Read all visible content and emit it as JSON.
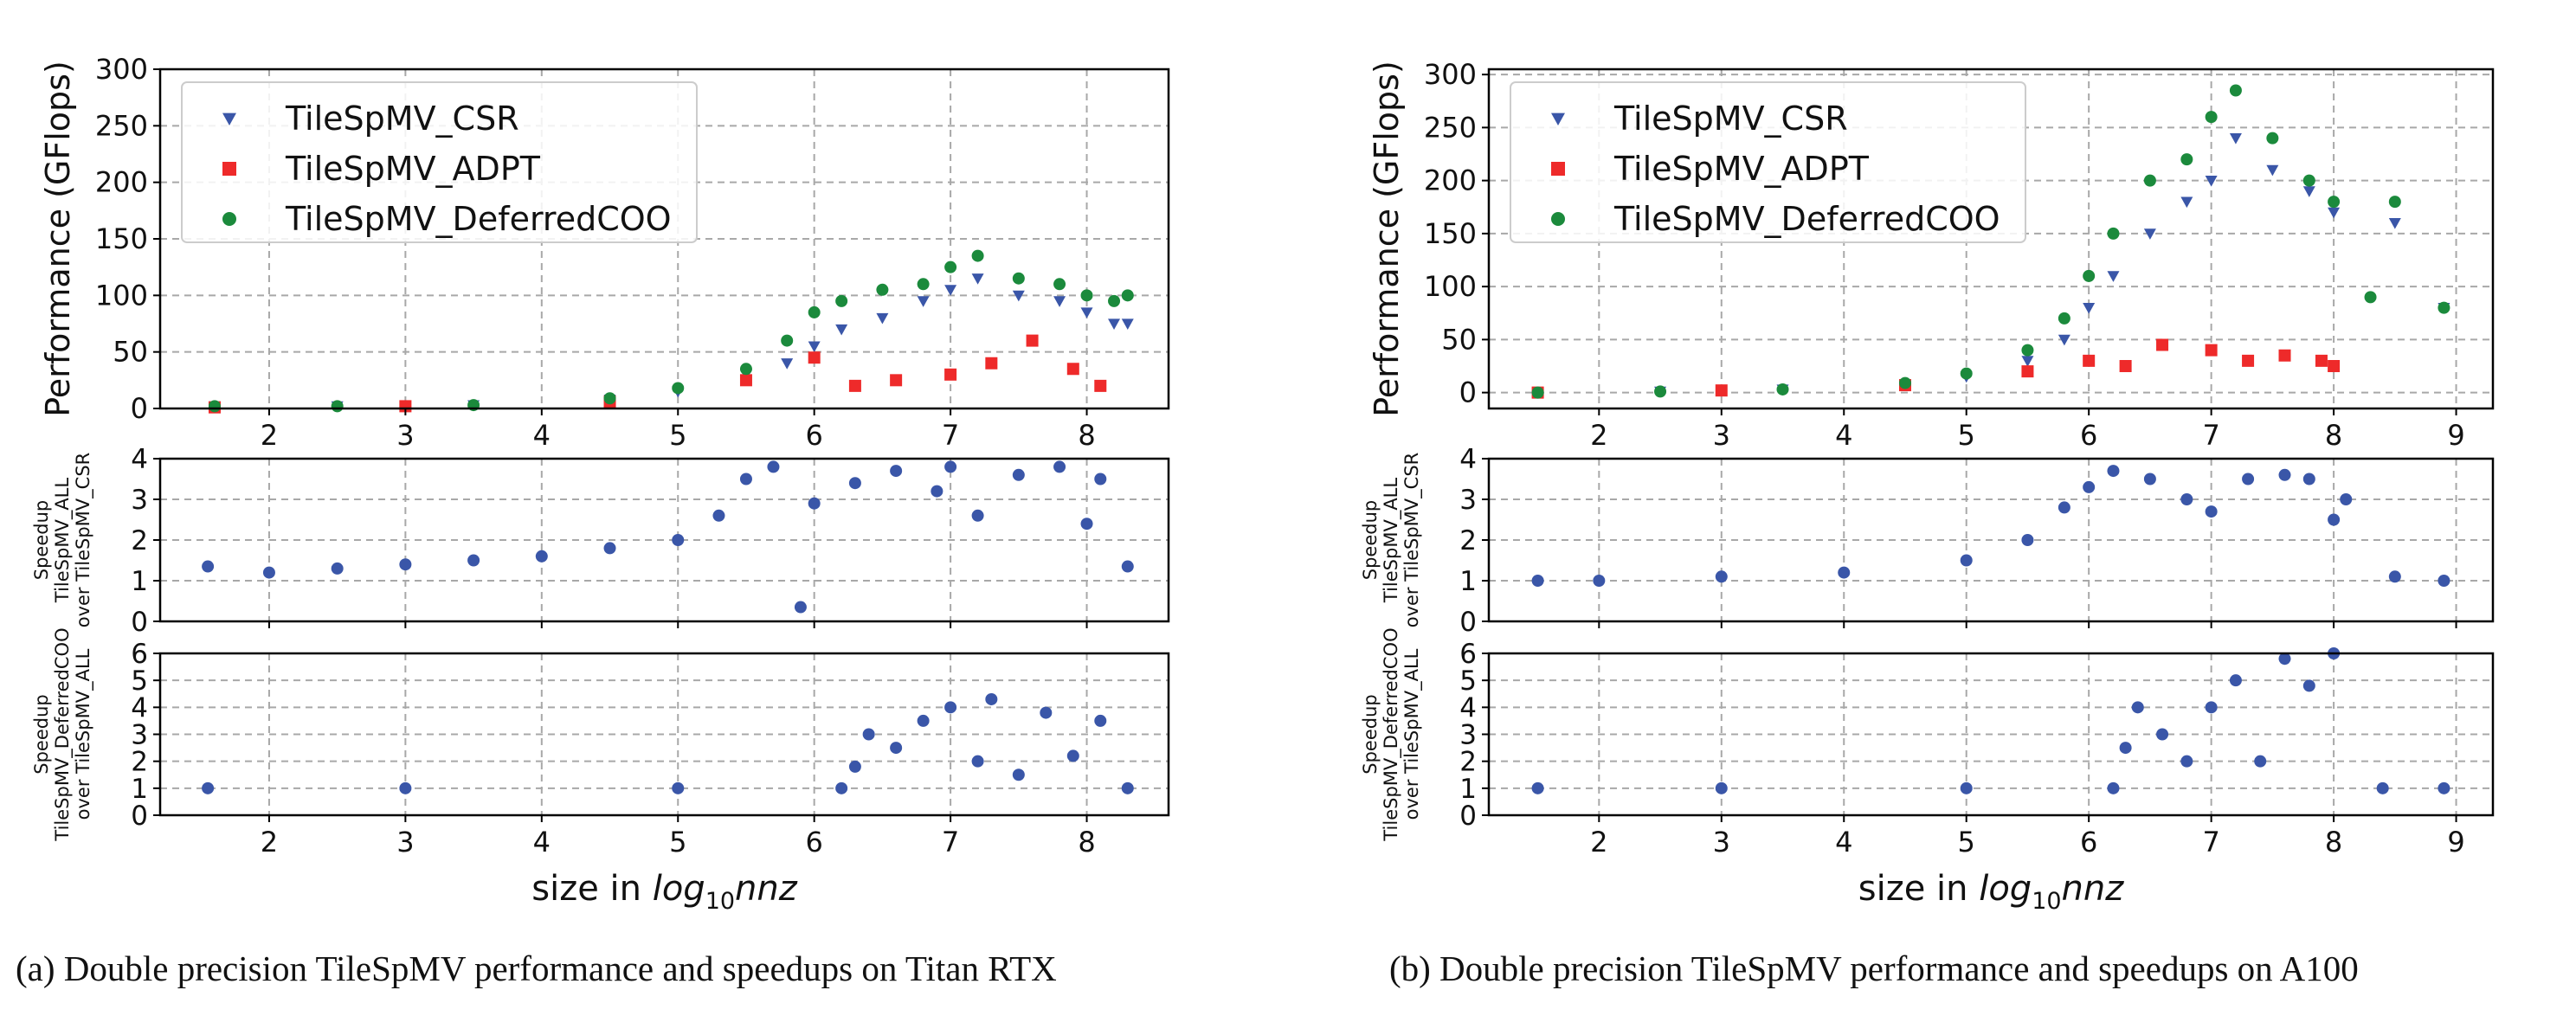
{
  "chart_data": [
    {
      "id": "a",
      "type": "scatter",
      "caption": "(a) Double precision TileSpMV performance and speedups on Titan RTX",
      "xlabel_prefix": "size in ",
      "xlabel_math": "log",
      "xlabel_sub": "10",
      "xlabel_var": "nnz",
      "xlim": [
        1.2,
        8.6
      ],
      "xticks": [
        2,
        3,
        4,
        5,
        6,
        7,
        8
      ],
      "panels": [
        {
          "id": "perf",
          "ylabel": [
            "Performance (GFlops)"
          ],
          "ylim": [
            0,
            300
          ],
          "yticks": [
            0,
            50,
            100,
            150,
            200,
            250,
            300
          ],
          "legend": {
            "placement": "top-left",
            "entries": [
              {
                "label": "TileSpMV_CSR",
                "marker": "triangle-down",
                "color": "#3a56a8"
              },
              {
                "label": "TileSpMV_ADPT",
                "marker": "square",
                "color": "#ee2a2a"
              },
              {
                "label": "TileSpMV_DeferredCOO",
                "marker": "circle",
                "color": "#1b8a3c"
              }
            ]
          },
          "series": [
            {
              "name": "TileSpMV_CSR",
              "color": "#3a56a8",
              "marker": "triangle-down",
              "x": [
                1.6,
                2.5,
                3.5,
                4.5,
                5.0,
                5.5,
                5.8,
                6.0,
                6.2,
                6.5,
                6.8,
                7.0,
                7.2,
                7.5,
                7.8,
                8.0,
                8.2,
                8.3
              ],
              "y": [
                2,
                2,
                3,
                8,
                15,
                30,
                40,
                55,
                70,
                80,
                95,
                105,
                115,
                100,
                95,
                85,
                75,
                75
              ]
            },
            {
              "name": "TileSpMV_ADPT",
              "color": "#ee2a2a",
              "marker": "square",
              "x": [
                1.6,
                3.0,
                4.5,
                5.5,
                6.0,
                6.3,
                6.6,
                7.0,
                7.3,
                7.6,
                7.9,
                8.1
              ],
              "y": [
                1,
                2,
                6,
                25,
                45,
                20,
                25,
                30,
                40,
                60,
                35,
                20
              ]
            },
            {
              "name": "TileSpMV_DeferredCOO",
              "color": "#1b8a3c",
              "marker": "circle",
              "x": [
                1.6,
                2.5,
                3.5,
                4.5,
                5.0,
                5.5,
                5.8,
                6.0,
                6.2,
                6.5,
                6.8,
                7.0,
                7.2,
                7.5,
                7.8,
                8.0,
                8.2,
                8.3
              ],
              "y": [
                2,
                2,
                3,
                9,
                18,
                35,
                60,
                85,
                95,
                105,
                110,
                125,
                135,
                115,
                110,
                100,
                95,
                100
              ]
            }
          ]
        },
        {
          "id": "speedup1",
          "ylabel": [
            "Speedup",
            "TileSpMV_ALL",
            "over TileSpMV_CSR"
          ],
          "ylim": [
            0,
            4
          ],
          "yticks": [
            0,
            1,
            2,
            3,
            4
          ],
          "series": [
            {
              "name": "",
              "color": "#3a56a8",
              "marker": "circle",
              "x": [
                1.55,
                2.0,
                2.5,
                3.0,
                3.5,
                4.0,
                4.5,
                5.0,
                5.3,
                5.5,
                5.7,
                5.9,
                6.0,
                6.3,
                6.6,
                6.9,
                7.0,
                7.2,
                7.5,
                7.8,
                8.0,
                8.1,
                8.3
              ],
              "y": [
                1.35,
                1.2,
                1.3,
                1.4,
                1.5,
                1.6,
                1.8,
                2.0,
                2.6,
                3.5,
                3.8,
                0.35,
                2.9,
                3.4,
                3.7,
                3.2,
                3.8,
                2.6,
                3.6,
                3.8,
                2.4,
                3.5,
                1.35
              ]
            }
          ]
        },
        {
          "id": "speedup2",
          "ylabel": [
            "Speedup",
            "TileSpMV_DeferredCOO",
            "over TileSpMV_ALL"
          ],
          "ylim": [
            0,
            6
          ],
          "yticks": [
            0,
            1,
            2,
            3,
            4,
            5,
            6
          ],
          "series": [
            {
              "name": "",
              "color": "#3a56a8",
              "marker": "circle",
              "x": [
                1.55,
                3.0,
                5.0,
                6.2,
                6.3,
                6.4,
                6.6,
                6.8,
                7.0,
                7.2,
                7.3,
                7.5,
                7.7,
                7.9,
                8.1,
                8.3
              ],
              "y": [
                1.0,
                1.0,
                1.0,
                1.0,
                1.8,
                3.0,
                2.5,
                3.5,
                4.0,
                2.0,
                4.3,
                1.5,
                3.8,
                2.2,
                3.5,
                1.0
              ]
            }
          ]
        }
      ]
    },
    {
      "id": "b",
      "type": "scatter",
      "caption": "(b) Double precision TileSpMV performance and speedups on A100",
      "xlabel_prefix": "size in ",
      "xlabel_math": "log",
      "xlabel_sub": "10",
      "xlabel_var": "nnz",
      "xlim": [
        1.1,
        9.3
      ],
      "xticks": [
        2,
        3,
        4,
        5,
        6,
        7,
        8,
        9
      ],
      "panels": [
        {
          "id": "perf",
          "ylabel": [
            "Performance (GFlops)"
          ],
          "ylim": [
            -15,
            305
          ],
          "yticks": [
            0,
            50,
            100,
            150,
            200,
            250,
            300
          ],
          "legend": {
            "placement": "top-left",
            "entries": [
              {
                "label": "TileSpMV_CSR",
                "marker": "triangle-down",
                "color": "#3a56a8"
              },
              {
                "label": "TileSpMV_ADPT",
                "marker": "square",
                "color": "#ee2a2a"
              },
              {
                "label": "TileSpMV_DeferredCOO",
                "marker": "circle",
                "color": "#1b8a3c"
              }
            ]
          },
          "series": [
            {
              "name": "TileSpMV_CSR",
              "color": "#3a56a8",
              "marker": "triangle-down",
              "x": [
                1.5,
                2.5,
                3.5,
                4.5,
                5.0,
                5.5,
                5.8,
                6.0,
                6.2,
                6.5,
                6.8,
                7.0,
                7.2,
                7.5,
                7.8,
                8.0,
                8.5,
                8.9
              ],
              "y": [
                0,
                1,
                3,
                8,
                15,
                30,
                50,
                80,
                110,
                150,
                180,
                200,
                240,
                210,
                190,
                170,
                160,
                80
              ]
            },
            {
              "name": "TileSpMV_ADPT",
              "color": "#ee2a2a",
              "marker": "square",
              "x": [
                1.5,
                3.0,
                4.5,
                5.5,
                6.0,
                6.3,
                6.6,
                7.0,
                7.3,
                7.6,
                7.9,
                8.0
              ],
              "y": [
                0,
                2,
                7,
                20,
                30,
                25,
                45,
                40,
                30,
                35,
                30,
                25
              ]
            },
            {
              "name": "TileSpMV_DeferredCOO",
              "color": "#1b8a3c",
              "marker": "circle",
              "x": [
                1.5,
                2.5,
                3.5,
                4.5,
                5.0,
                5.5,
                5.8,
                6.0,
                6.2,
                6.5,
                6.8,
                7.0,
                7.2,
                7.5,
                7.8,
                8.0,
                8.3,
                8.5,
                8.9
              ],
              "y": [
                0,
                1,
                3,
                9,
                18,
                40,
                70,
                110,
                150,
                200,
                220,
                260,
                285,
                240,
                200,
                180,
                90,
                180,
                80
              ]
            }
          ]
        },
        {
          "id": "speedup1",
          "ylabel": [
            "Speedup",
            "TileSpMV_ALL",
            "over TileSpMV_CSR"
          ],
          "ylim": [
            0,
            4
          ],
          "yticks": [
            0,
            1,
            2,
            3,
            4
          ],
          "series": [
            {
              "name": "",
              "color": "#3a56a8",
              "marker": "circle",
              "x": [
                1.5,
                2.0,
                3.0,
                4.0,
                5.0,
                5.5,
                5.8,
                6.0,
                6.2,
                6.5,
                6.8,
                7.0,
                7.3,
                7.6,
                7.8,
                8.0,
                8.1,
                8.5,
                8.9
              ],
              "y": [
                1.0,
                1.0,
                1.1,
                1.2,
                1.5,
                2.0,
                2.8,
                3.3,
                3.7,
                3.5,
                3.0,
                2.7,
                3.5,
                3.6,
                3.5,
                2.5,
                3.0,
                1.1,
                1.0
              ]
            }
          ]
        },
        {
          "id": "speedup2",
          "ylabel": [
            "Speedup",
            "TileSpMV_DeferredCOO",
            "over TileSpMV_ALL"
          ],
          "ylim": [
            0,
            6
          ],
          "yticks": [
            0,
            1,
            2,
            3,
            4,
            5,
            6
          ],
          "series": [
            {
              "name": "",
              "color": "#3a56a8",
              "marker": "circle",
              "x": [
                1.5,
                3.0,
                5.0,
                6.2,
                6.3,
                6.4,
                6.6,
                6.8,
                7.0,
                7.2,
                7.4,
                7.6,
                7.8,
                8.0,
                8.4,
                8.9
              ],
              "y": [
                1.0,
                1.0,
                1.0,
                1.0,
                2.5,
                4.0,
                3.0,
                2.0,
                4.0,
                5.0,
                2.0,
                5.8,
                4.8,
                6.0,
                1.0,
                1.0
              ]
            }
          ]
        }
      ]
    }
  ]
}
